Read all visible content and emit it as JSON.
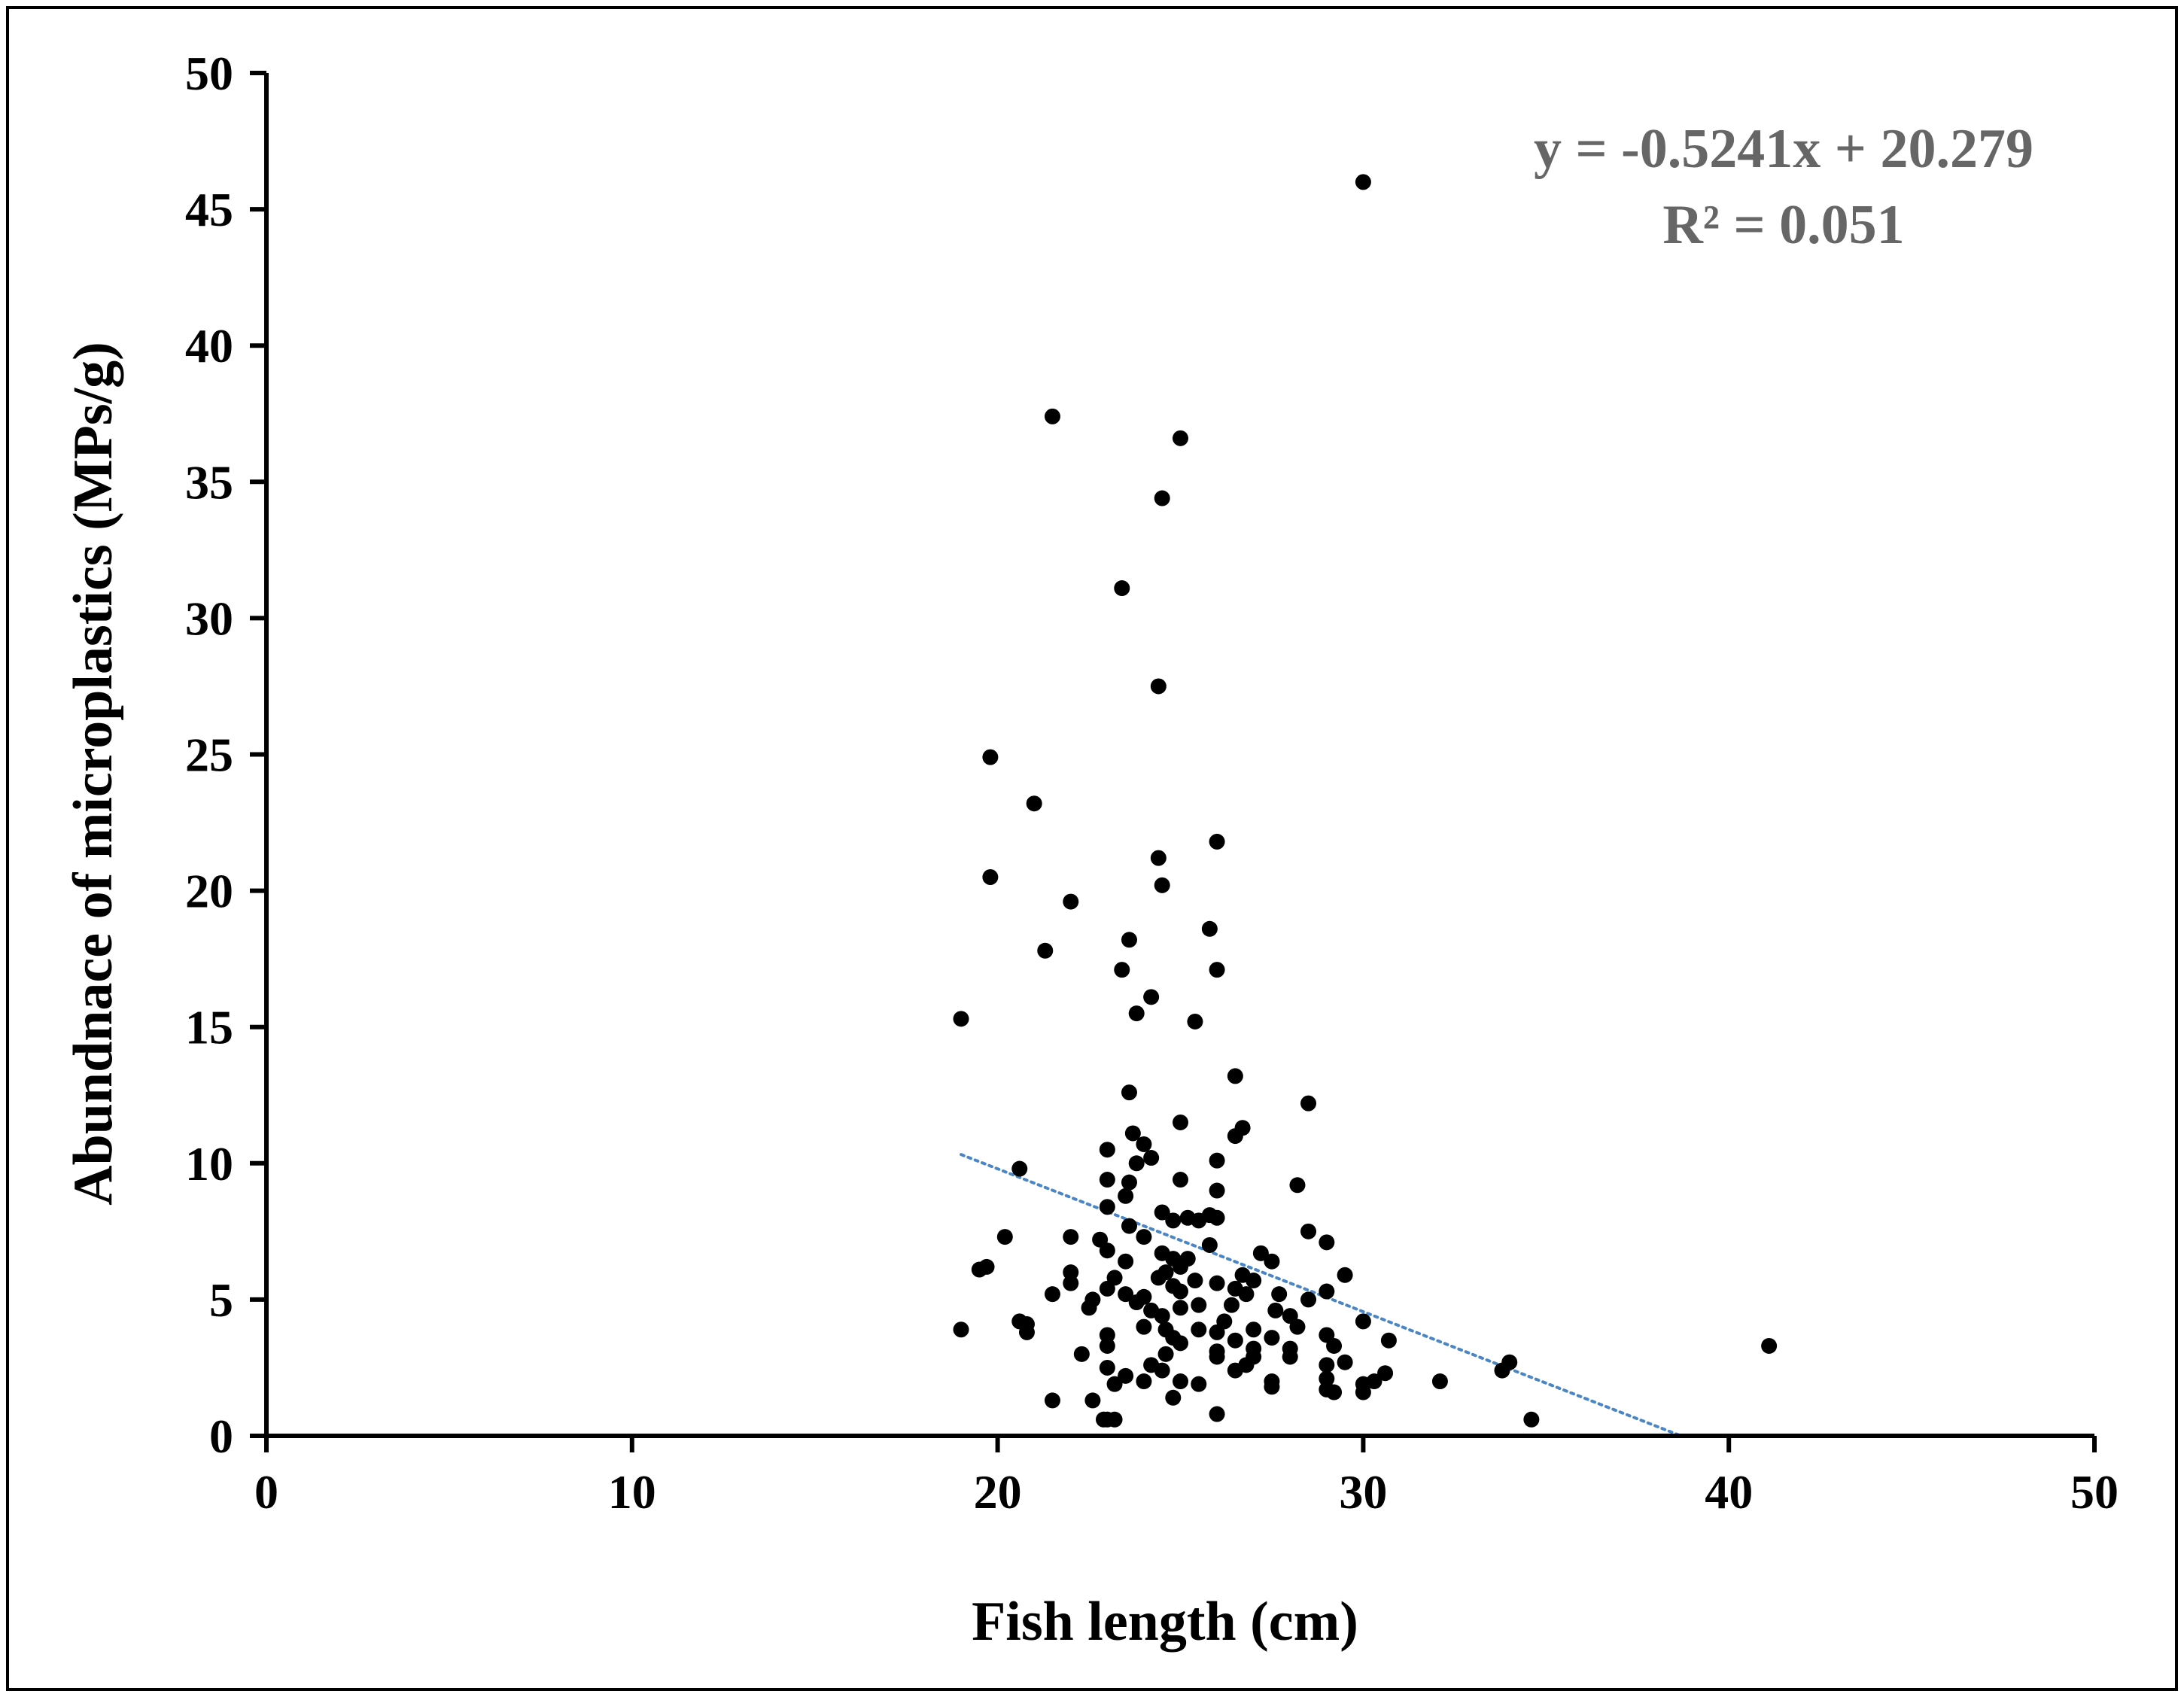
{
  "chart_data": {
    "type": "scatter",
    "title": "",
    "xlabel": "Fish length (cm)",
    "ylabel": "Abundnace of microplastics (MPs/g)",
    "xlim": [
      0,
      50
    ],
    "ylim": [
      0,
      50
    ],
    "xticks": [
      "0",
      "10",
      "20",
      "30",
      "40",
      "50"
    ],
    "yticks": [
      "0",
      "5",
      "10",
      "15",
      "20",
      "25",
      "30",
      "35",
      "40",
      "45",
      "50"
    ],
    "grid": false,
    "legend": "none",
    "marker_color": "#000000",
    "trendline": {
      "type": "linear",
      "slope": -0.5241,
      "intercept": 20.279,
      "x_range": [
        19.0,
        38.7
      ],
      "color": "#4a86c5",
      "style": "dotted"
    },
    "annotations": {
      "equation": "y = -0.5241x + 20.279",
      "r_squared": "R² = 0.051",
      "color": "#666666"
    },
    "points": [
      [
        30.0,
        46.0
      ],
      [
        21.5,
        37.4
      ],
      [
        25.0,
        36.6
      ],
      [
        24.5,
        34.4
      ],
      [
        23.4,
        31.1
      ],
      [
        24.4,
        27.5
      ],
      [
        19.8,
        24.9
      ],
      [
        21.0,
        23.2
      ],
      [
        26.0,
        21.8
      ],
      [
        24.4,
        21.2
      ],
      [
        19.8,
        20.5
      ],
      [
        24.5,
        20.2
      ],
      [
        22.0,
        19.6
      ],
      [
        25.8,
        18.6
      ],
      [
        23.6,
        18.2
      ],
      [
        21.3,
        17.8
      ],
      [
        23.4,
        17.1
      ],
      [
        26.0,
        17.1
      ],
      [
        24.2,
        16.1
      ],
      [
        23.8,
        15.5
      ],
      [
        19.0,
        15.3
      ],
      [
        25.4,
        15.2
      ],
      [
        26.5,
        13.2
      ],
      [
        23.6,
        12.6
      ],
      [
        28.5,
        12.2
      ],
      [
        25.0,
        11.5
      ],
      [
        26.7,
        11.3
      ],
      [
        23.7,
        11.1
      ],
      [
        26.5,
        11.0
      ],
      [
        24.0,
        10.7
      ],
      [
        23.0,
        10.5
      ],
      [
        24.2,
        10.2
      ],
      [
        26.0,
        10.1
      ],
      [
        23.8,
        10.0
      ],
      [
        20.6,
        9.8
      ],
      [
        23.0,
        9.4
      ],
      [
        25.0,
        9.4
      ],
      [
        23.6,
        9.3
      ],
      [
        28.2,
        9.2
      ],
      [
        23.5,
        8.8
      ],
      [
        26.0,
        9.0
      ],
      [
        23.0,
        8.4
      ],
      [
        24.5,
        8.2
      ],
      [
        25.2,
        8.0
      ],
      [
        25.8,
        8.1
      ],
      [
        26.0,
        8.0
      ],
      [
        24.8,
        7.9
      ],
      [
        23.6,
        7.7
      ],
      [
        25.5,
        7.9
      ],
      [
        28.5,
        7.5
      ],
      [
        20.2,
        7.3
      ],
      [
        22.0,
        7.3
      ],
      [
        24.0,
        7.3
      ],
      [
        22.8,
        7.2
      ],
      [
        25.8,
        7.0
      ],
      [
        29.0,
        7.1
      ],
      [
        23.0,
        6.8
      ],
      [
        24.5,
        6.7
      ],
      [
        27.2,
        6.7
      ],
      [
        24.8,
        6.5
      ],
      [
        25.2,
        6.5
      ],
      [
        23.5,
        6.4
      ],
      [
        25.0,
        6.2
      ],
      [
        27.5,
        6.4
      ],
      [
        19.5,
        6.1
      ],
      [
        19.7,
        6.2
      ],
      [
        22.0,
        6.0
      ],
      [
        24.6,
        6.0
      ],
      [
        26.7,
        5.9
      ],
      [
        29.5,
        5.9
      ],
      [
        23.2,
        5.8
      ],
      [
        24.4,
        5.8
      ],
      [
        25.4,
        5.7
      ],
      [
        26.0,
        5.6
      ],
      [
        27.0,
        5.7
      ],
      [
        22.0,
        5.6
      ],
      [
        23.0,
        5.4
      ],
      [
        24.8,
        5.5
      ],
      [
        26.5,
        5.4
      ],
      [
        29.0,
        5.3
      ],
      [
        21.5,
        5.2
      ],
      [
        23.5,
        5.2
      ],
      [
        24.0,
        5.1
      ],
      [
        25.0,
        5.3
      ],
      [
        26.8,
        5.2
      ],
      [
        27.7,
        5.2
      ],
      [
        22.6,
        5.0
      ],
      [
        23.8,
        4.9
      ],
      [
        25.5,
        4.8
      ],
      [
        28.5,
        5.0
      ],
      [
        22.5,
        4.7
      ],
      [
        24.2,
        4.6
      ],
      [
        25.0,
        4.7
      ],
      [
        26.4,
        4.8
      ],
      [
        27.6,
        4.6
      ],
      [
        20.6,
        4.2
      ],
      [
        20.8,
        4.1
      ],
      [
        24.5,
        4.4
      ],
      [
        26.2,
        4.2
      ],
      [
        28.0,
        4.4
      ],
      [
        30.0,
        4.2
      ],
      [
        19.0,
        3.9
      ],
      [
        20.8,
        3.8
      ],
      [
        24.0,
        4.0
      ],
      [
        24.6,
        3.9
      ],
      [
        25.5,
        3.9
      ],
      [
        26.0,
        3.8
      ],
      [
        27.0,
        3.9
      ],
      [
        28.2,
        4.0
      ],
      [
        23.0,
        3.7
      ],
      [
        24.8,
        3.6
      ],
      [
        26.5,
        3.5
      ],
      [
        27.5,
        3.6
      ],
      [
        29.0,
        3.7
      ],
      [
        30.7,
        3.5
      ],
      [
        23.0,
        3.3
      ],
      [
        25.0,
        3.4
      ],
      [
        26.0,
        3.1
      ],
      [
        27.0,
        3.2
      ],
      [
        28.0,
        3.2
      ],
      [
        29.2,
        3.3
      ],
      [
        22.3,
        3.0
      ],
      [
        24.6,
        3.0
      ],
      [
        26.0,
        2.9
      ],
      [
        27.0,
        2.9
      ],
      [
        28.0,
        2.9
      ],
      [
        24.2,
        2.6
      ],
      [
        26.8,
        2.6
      ],
      [
        29.0,
        2.6
      ],
      [
        29.5,
        2.7
      ],
      [
        34.0,
        2.7
      ],
      [
        23.0,
        2.5
      ],
      [
        24.5,
        2.4
      ],
      [
        26.5,
        2.4
      ],
      [
        30.6,
        2.3
      ],
      [
        33.8,
        2.4
      ],
      [
        23.5,
        2.2
      ],
      [
        25.0,
        2.0
      ],
      [
        27.5,
        2.0
      ],
      [
        29.0,
        2.1
      ],
      [
        30.0,
        1.9
      ],
      [
        30.3,
        2.0
      ],
      [
        32.1,
        2.0
      ],
      [
        23.2,
        1.9
      ],
      [
        24.0,
        2.0
      ],
      [
        25.5,
        1.9
      ],
      [
        27.5,
        1.8
      ],
      [
        29.0,
        1.7
      ],
      [
        30.0,
        1.6
      ],
      [
        21.5,
        1.3
      ],
      [
        22.6,
        1.3
      ],
      [
        24.8,
        1.4
      ],
      [
        29.2,
        1.6
      ],
      [
        26.0,
        0.8
      ],
      [
        34.6,
        0.6
      ],
      [
        22.9,
        0.6
      ],
      [
        23.0,
        0.6
      ],
      [
        23.2,
        0.6
      ],
      [
        41.1,
        3.3
      ]
    ]
  }
}
